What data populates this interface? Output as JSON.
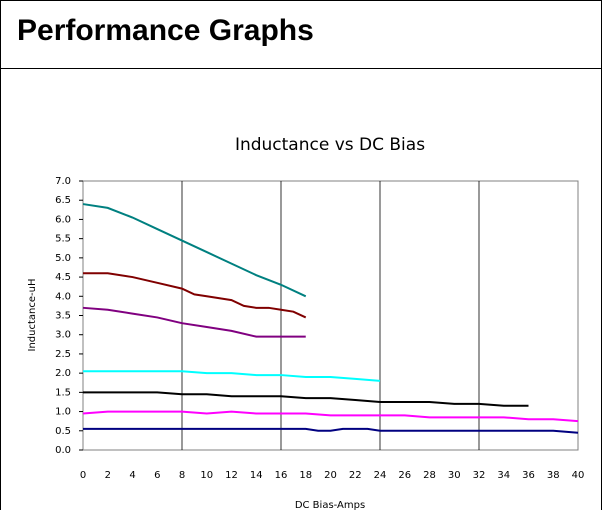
{
  "header": {
    "title": "Performance Graphs"
  },
  "chart_data": {
    "type": "line",
    "title": "Inductance vs DC Bias",
    "xlabel": "DC Bias-Amps",
    "ylabel": "Inductance-uH",
    "xlim": [
      0,
      40
    ],
    "ylim": [
      0,
      7
    ],
    "xticks": [
      0,
      2,
      4,
      6,
      8,
      10,
      12,
      14,
      16,
      18,
      20,
      22,
      24,
      26,
      28,
      30,
      32,
      34,
      36,
      38,
      40
    ],
    "yticks": [
      {
        "value": 0,
        "label": "0.0"
      },
      0.5,
      {
        "value": 1,
        "label": "1.0"
      },
      1.5,
      {
        "value": 2,
        "label": "2.0"
      },
      2.5,
      {
        "value": 3,
        "label": "3.0"
      },
      3.5,
      {
        "value": 4,
        "label": "4.0"
      },
      4.5,
      {
        "value": 5,
        "label": "5.0"
      },
      5.5,
      {
        "value": 6,
        "label": "6.0"
      },
      6.5,
      {
        "value": 7,
        "label": "7.0"
      }
    ],
    "xgrid": [
      8,
      16,
      24,
      32
    ],
    "series": [
      {
        "color": "#008080",
        "x": [
          0,
          2,
          4,
          6,
          8,
          10,
          12,
          14,
          16,
          18
        ],
        "values": [
          6.4,
          6.3,
          6.05,
          5.75,
          5.45,
          5.15,
          4.85,
          4.55,
          4.3,
          4.0
        ]
      },
      {
        "color": "#800000",
        "x": [
          0,
          2,
          4,
          6,
          8,
          9,
          10,
          12,
          13,
          14,
          15,
          16,
          17,
          18
        ],
        "values": [
          4.6,
          4.6,
          4.5,
          4.35,
          4.2,
          4.05,
          4.0,
          3.9,
          3.75,
          3.7,
          3.7,
          3.65,
          3.6,
          3.45
        ]
      },
      {
        "color": "#800080",
        "x": [
          0,
          2,
          4,
          6,
          8,
          10,
          12,
          14,
          16,
          18
        ],
        "values": [
          3.7,
          3.65,
          3.55,
          3.45,
          3.3,
          3.2,
          3.1,
          2.95,
          2.95,
          2.95
        ]
      },
      {
        "color": "#00ffff",
        "x": [
          0,
          2,
          4,
          6,
          8,
          10,
          12,
          14,
          16,
          18,
          20,
          22,
          24
        ],
        "values": [
          2.05,
          2.05,
          2.05,
          2.05,
          2.05,
          2.0,
          2.0,
          1.95,
          1.95,
          1.9,
          1.9,
          1.85,
          1.8
        ]
      },
      {
        "color": "#000000",
        "x": [
          0,
          2,
          4,
          6,
          8,
          10,
          12,
          14,
          16,
          18,
          20,
          22,
          24,
          26,
          28,
          30,
          32,
          34,
          36
        ],
        "values": [
          1.5,
          1.5,
          1.5,
          1.5,
          1.45,
          1.45,
          1.4,
          1.4,
          1.4,
          1.35,
          1.35,
          1.3,
          1.25,
          1.25,
          1.25,
          1.2,
          1.2,
          1.15,
          1.15
        ]
      },
      {
        "color": "#ff00ff",
        "x": [
          0,
          2,
          4,
          6,
          8,
          10,
          12,
          14,
          16,
          18,
          20,
          22,
          24,
          26,
          28,
          30,
          32,
          34,
          36,
          38,
          40
        ],
        "values": [
          0.95,
          1.0,
          1.0,
          1.0,
          1.0,
          0.95,
          1.0,
          0.95,
          0.95,
          0.95,
          0.9,
          0.9,
          0.9,
          0.9,
          0.85,
          0.85,
          0.85,
          0.85,
          0.8,
          0.8,
          0.75
        ]
      },
      {
        "color": "#000080",
        "x": [
          0,
          4,
          8,
          12,
          16,
          18,
          19,
          20,
          21,
          23,
          24,
          28,
          32,
          36,
          38,
          40
        ],
        "values": [
          0.55,
          0.55,
          0.55,
          0.55,
          0.55,
          0.55,
          0.5,
          0.5,
          0.55,
          0.55,
          0.5,
          0.5,
          0.5,
          0.5,
          0.5,
          0.45
        ]
      }
    ]
  }
}
